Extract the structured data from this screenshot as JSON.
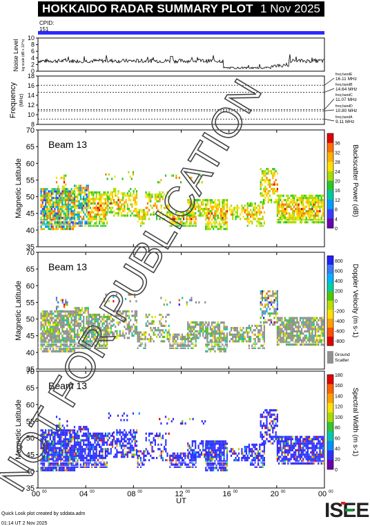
{
  "header": {
    "title": "HOKKAIDO RADAR SUMMARY PLOT",
    "date": "1 Nov 2025"
  },
  "cpid": {
    "label": "CPID:",
    "value": "151"
  },
  "noise_panel": {
    "ylabel": "Noise Level",
    "ylabel_sub": "log scale (dB x 10^n)",
    "yticks": [
      "0",
      "2",
      "4",
      "6",
      "8",
      "10"
    ]
  },
  "freq_panel": {
    "ylabel": "Frequency",
    "ylabel_sub": "(MHz)",
    "yticks": [
      "8",
      "10",
      "12",
      "14",
      "16",
      "18"
    ],
    "bands": [
      {
        "name": "freq bandE",
        "value": "16.11 MHz",
        "mhz": 16.11
      },
      {
        "name": "freq bandB",
        "value": "14.64 MHz",
        "mhz": 14.64
      },
      {
        "name": "freq bandC",
        "value": "11.07 MHz",
        "mhz": 11.07
      },
      {
        "name": "freq bandD",
        "value": "10.80 MHz",
        "mhz": 10.8
      },
      {
        "name": "freq bandA",
        "value": "9.11 MHz",
        "mhz": 9.11
      }
    ]
  },
  "panels": [
    {
      "beam": "Beam 13",
      "ylabel": "Magnetic Latitude",
      "cbar_label": "Backscatter Power (dB)",
      "cbar_ticks": [
        "0",
        "4",
        "8",
        "12",
        "16",
        "20",
        "24",
        "28",
        "32",
        "36"
      ]
    },
    {
      "beam": "Beam 13",
      "ylabel": "Magnetic Latitude",
      "cbar_label": "Doppler Velocity (m s-1)",
      "cbar_ticks": [
        "800",
        "600",
        "400",
        "200",
        "0",
        "-200",
        "-400",
        "-600",
        "-800"
      ],
      "ground_label": "Ground",
      "ground_label2": "Scatter"
    },
    {
      "beam": "Beam 13",
      "ylabel": "Magnetic Latitude",
      "cbar_label": "Spectral Width (m s-1)",
      "cbar_ticks": [
        "180",
        "160",
        "140",
        "120",
        "100",
        "80",
        "60",
        "40",
        "20",
        "0"
      ]
    }
  ],
  "lat_ticks": [
    "35",
    "40",
    "45",
    "50",
    "55",
    "60",
    "65",
    "70"
  ],
  "x_ticks": [
    "00",
    "04",
    "08",
    "12",
    "16",
    "20",
    "00"
  ],
  "x_tick_sup": "00",
  "xlabel": "UT",
  "footer": {
    "credit": "Quick Look plot created by sddata.adm",
    "created": "01:14 UT  2 Nov 2025"
  },
  "logo": "ISEE",
  "watermark": "NOT FOR PUBLICATION",
  "chart_data": {
    "type": "heatmap",
    "x_range_hours": [
      0,
      24
    ],
    "lat_range": [
      35,
      70
    ],
    "noise_ylim": [
      0,
      10
    ],
    "freq_ylim": [
      8,
      18
    ],
    "power_colorbar": [
      0,
      36
    ],
    "velocity_colorbar": [
      -800,
      800
    ],
    "width_colorbar": [
      0,
      180
    ]
  },
  "colors": {
    "power": [
      "#6a00b0",
      "#3b3bff",
      "#009dff",
      "#00c8a0",
      "#29c82a",
      "#a8dc00",
      "#ffe000",
      "#ffb000",
      "#ff7000",
      "#e00000"
    ],
    "velocity": [
      "#2020ff",
      "#3a78ff",
      "#00b4ff",
      "#00d0a0",
      "#50c800",
      "#b8e000",
      "#ffe000",
      "#ffa000",
      "#ff5000",
      "#e00000"
    ],
    "width": [
      "#6a00b0",
      "#3030ff",
      "#0090ff",
      "#00c8b0",
      "#30c830",
      "#a8dc00",
      "#ffe000",
      "#ffa000",
      "#ff6000",
      "#e00000"
    ],
    "ground": "#909090",
    "cpid_bar": "#2a2aff"
  }
}
